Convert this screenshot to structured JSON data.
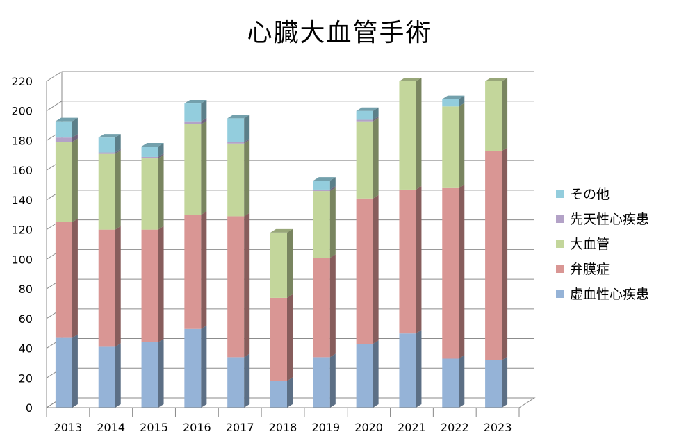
{
  "chart_data": {
    "type": "bar",
    "stacked": true,
    "three_d": true,
    "title": "心臓大血管手術",
    "xlabel": "",
    "ylabel": "",
    "ylim": [
      0,
      220
    ],
    "yticks": [
      0,
      20,
      40,
      60,
      80,
      100,
      120,
      140,
      160,
      180,
      200,
      220
    ],
    "grid": true,
    "legend_position": "right",
    "categories": [
      "2013",
      "2014",
      "2015",
      "2016",
      "2017",
      "2018",
      "2019",
      "2020",
      "2021",
      "2022",
      "2023"
    ],
    "series": [
      {
        "name": "虚血性心疾患",
        "color": "#95b3d7",
        "values": [
          47,
          41,
          44,
          53,
          34,
          18,
          34,
          43,
          50,
          33,
          32
        ]
      },
      {
        "name": "弁膜症",
        "color": "#d99694",
        "values": [
          78,
          79,
          76,
          77,
          95,
          56,
          67,
          98,
          97,
          115,
          141
        ]
      },
      {
        "name": "大血管",
        "color": "#c3d69b",
        "values": [
          54,
          51,
          48,
          61,
          49,
          44,
          45,
          52,
          73,
          55,
          47
        ]
      },
      {
        "name": "先天性心疾患",
        "color": "#b3a2c7",
        "values": [
          3,
          1,
          1,
          2,
          1,
          0,
          1,
          1,
          0,
          0,
          0
        ]
      },
      {
        "name": "その他",
        "color": "#93cddd",
        "values": [
          11,
          10,
          7,
          12,
          16,
          0,
          6,
          6,
          0,
          5,
          0
        ]
      }
    ],
    "legend_order": [
      "その他",
      "先天性心疾患",
      "大血管",
      "弁膜症",
      "虚血性心疾患"
    ]
  }
}
